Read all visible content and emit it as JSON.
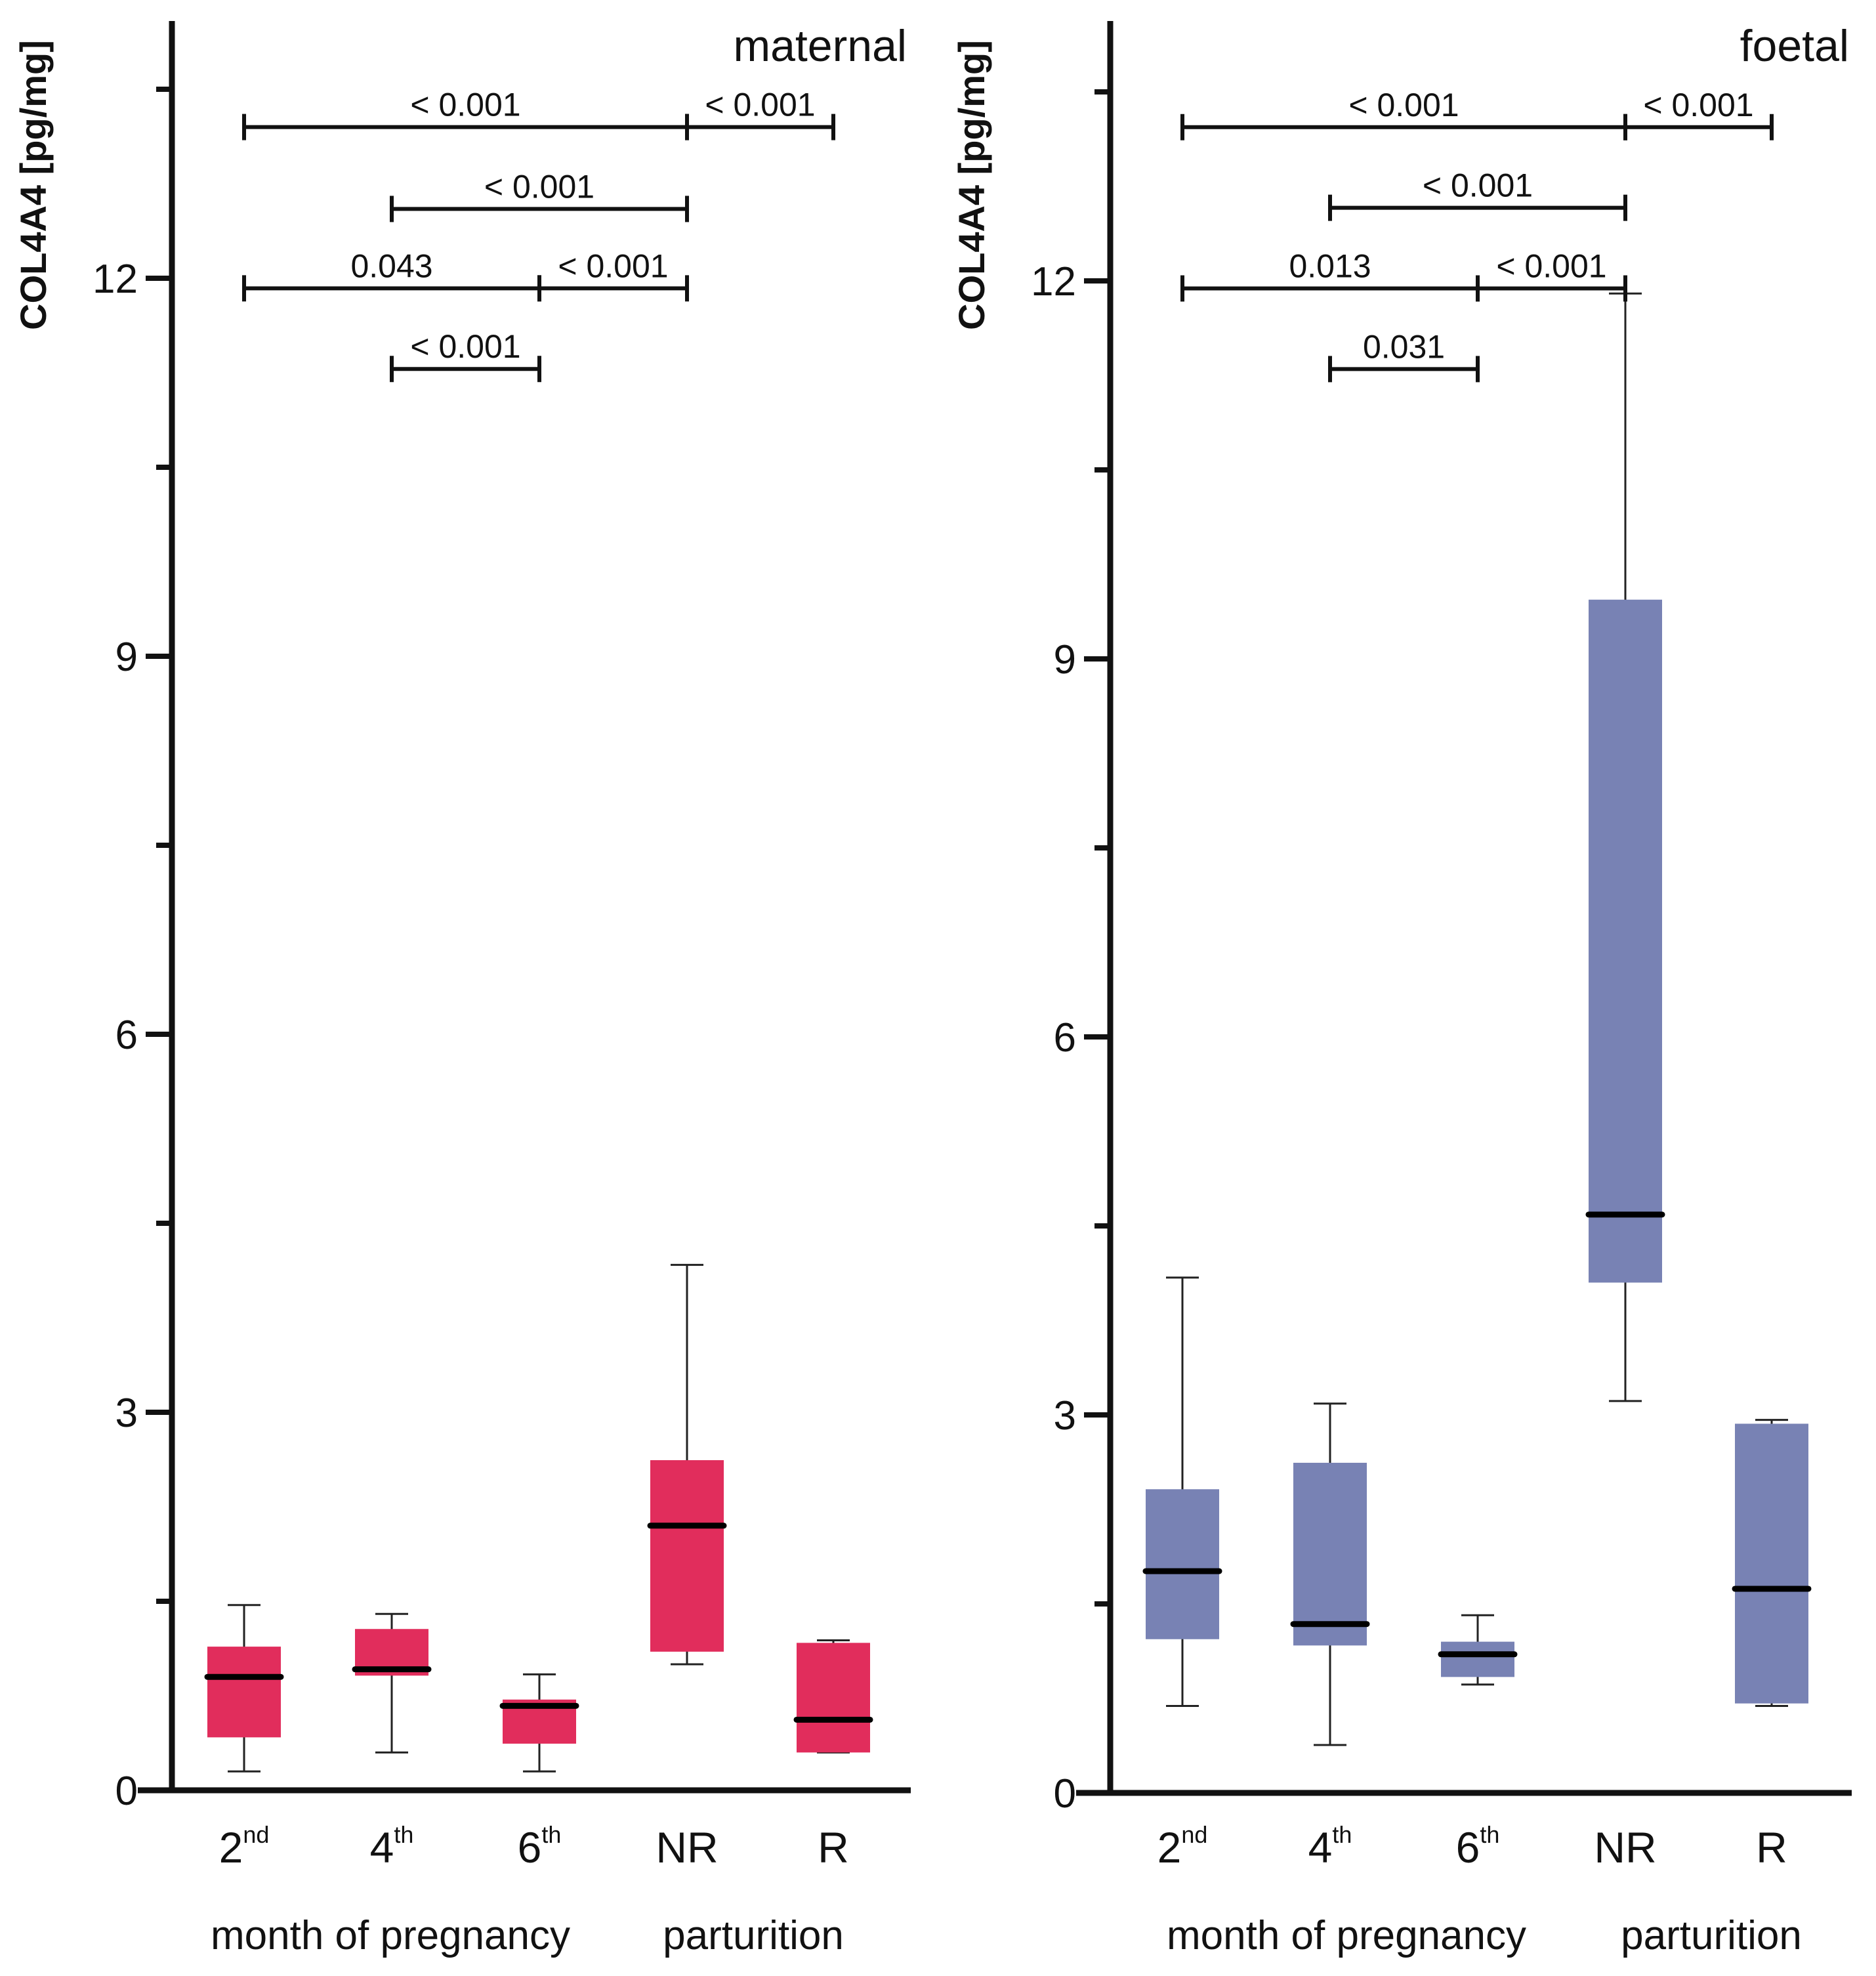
{
  "chart_data": [
    {
      "type": "box",
      "title": "maternal",
      "ylabel": "COL4A4 [pg/mg]",
      "ylim": [
        0,
        14
      ],
      "yticks_labeled": [
        0,
        3,
        6,
        9,
        12
      ],
      "yticks_minor": [
        1.5,
        4.5,
        7.5,
        10.5,
        13.5
      ],
      "color": "#e12d5c",
      "categories": [
        {
          "main": "2",
          "sup": "nd"
        },
        {
          "main": "4",
          "sup": "th"
        },
        {
          "main": "6",
          "sup": "th"
        },
        {
          "main": "NR",
          "sup": ""
        },
        {
          "main": "R",
          "sup": ""
        }
      ],
      "group_labels": {
        "pregnancy": "month of pregnancy",
        "parturition": "parturition"
      },
      "boxes": [
        {
          "whisker_low": 0.15,
          "q1": 0.42,
          "median": 0.9,
          "q3": 1.14,
          "whisker_high": 1.47
        },
        {
          "whisker_low": 0.3,
          "q1": 0.91,
          "median": 0.96,
          "q3": 1.28,
          "whisker_high": 1.4
        },
        {
          "whisker_low": 0.15,
          "q1": 0.37,
          "median": 0.67,
          "q3": 0.72,
          "whisker_high": 0.92
        },
        {
          "whisker_low": 1.0,
          "q1": 1.1,
          "median": 2.1,
          "q3": 2.62,
          "whisker_high": 4.17
        },
        {
          "whisker_low": 0.3,
          "q1": 0.3,
          "median": 0.56,
          "q3": 1.17,
          "whisker_high": 1.19
        }
      ],
      "significance": [
        {
          "from": 0,
          "to": 3,
          "y": 13.2,
          "label": "< 0.001"
        },
        {
          "from": 3,
          "to": 4,
          "y": 13.2,
          "label": "< 0.001"
        },
        {
          "from": 1,
          "to": 3,
          "y": 12.55,
          "label": "< 0.001"
        },
        {
          "from": 0,
          "to": 2,
          "y": 11.92,
          "label": "0.043"
        },
        {
          "from": 2,
          "to": 3,
          "y": 11.92,
          "label": "< 0.001"
        },
        {
          "from": 1,
          "to": 2,
          "y": 11.28,
          "label": "< 0.001"
        }
      ]
    },
    {
      "type": "box",
      "title": "foetal",
      "ylabel": "COL4A4 [pg/mg]",
      "ylim": [
        0,
        14
      ],
      "yticks_labeled": [
        0,
        3,
        6,
        9,
        12
      ],
      "yticks_minor": [
        1.5,
        4.5,
        7.5,
        10.5,
        13.5
      ],
      "color": "#7882b4",
      "categories": [
        {
          "main": "2",
          "sup": "nd"
        },
        {
          "main": "4",
          "sup": "th"
        },
        {
          "main": "6",
          "sup": "th"
        },
        {
          "main": "NR",
          "sup": ""
        },
        {
          "main": "R",
          "sup": ""
        }
      ],
      "group_labels": {
        "pregnancy": "month of pregnancy",
        "parturition": "parturition"
      },
      "boxes": [
        {
          "whisker_low": 0.69,
          "q1": 1.22,
          "median": 1.76,
          "q3": 2.41,
          "whisker_high": 4.09
        },
        {
          "whisker_low": 0.38,
          "q1": 1.17,
          "median": 1.34,
          "q3": 2.62,
          "whisker_high": 3.09
        },
        {
          "whisker_low": 0.86,
          "q1": 0.92,
          "median": 1.1,
          "q3": 1.2,
          "whisker_high": 1.41
        },
        {
          "whisker_low": 3.11,
          "q1": 4.05,
          "median": 4.59,
          "q3": 9.47,
          "whisker_high": 11.9
        },
        {
          "whisker_low": 0.69,
          "q1": 0.71,
          "median": 1.62,
          "q3": 2.93,
          "whisker_high": 2.96
        }
      ],
      "significance": [
        {
          "from": 0,
          "to": 3,
          "y": 13.22,
          "label": "< 0.001"
        },
        {
          "from": 3,
          "to": 4,
          "y": 13.22,
          "label": "< 0.001"
        },
        {
          "from": 1,
          "to": 3,
          "y": 12.58,
          "label": "< 0.001"
        },
        {
          "from": 0,
          "to": 2,
          "y": 11.94,
          "label": "0.013"
        },
        {
          "from": 2,
          "to": 3,
          "y": 11.94,
          "label": "< 0.001"
        },
        {
          "from": 1,
          "to": 2,
          "y": 11.3,
          "label": "0.031"
        }
      ]
    }
  ]
}
